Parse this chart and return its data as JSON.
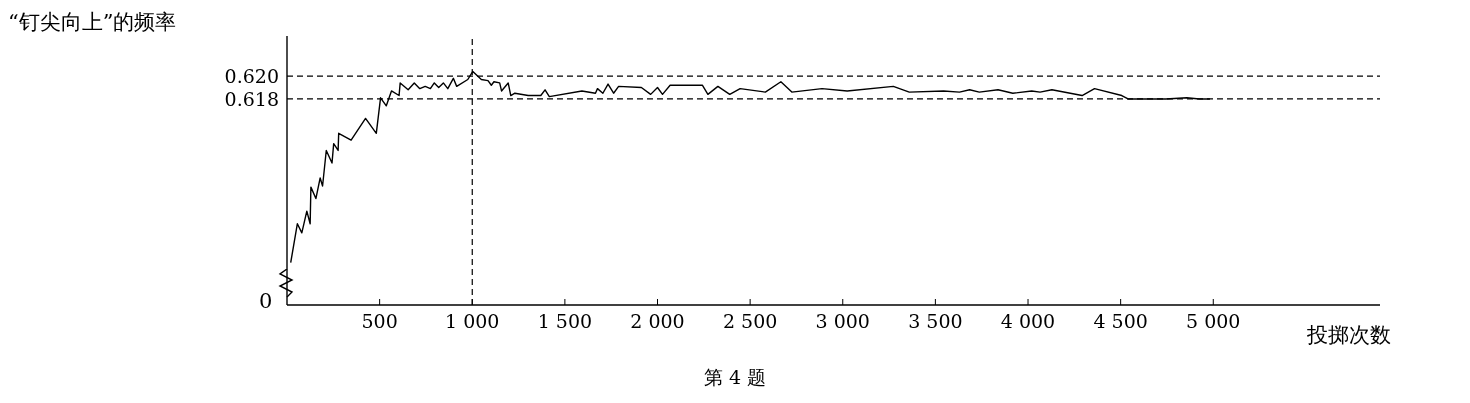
{
  "chart_data": {
    "type": "line",
    "ylabel": "“钉尖向上”的频率",
    "xlabel": "投掷次数",
    "annotations": [
      "0",
      "第 4 题"
    ],
    "xlim": [
      0,
      5900
    ],
    "xticks": [
      500,
      {
        "value": 1000,
        "label": "1 000"
      },
      {
        "value": 1500,
        "label": "1 500"
      },
      {
        "value": 2000,
        "label": "2 000"
      },
      {
        "value": 2500,
        "label": "2 500"
      },
      {
        "value": 3000,
        "label": "3 000"
      },
      {
        "value": 3500,
        "label": "3 500"
      },
      {
        "value": 4000,
        "label": "4 000"
      },
      {
        "value": 4500,
        "label": "4 500"
      },
      {
        "value": 5000,
        "label": "5 000"
      }
    ],
    "ylim": [
      0.6,
      0.6235
    ],
    "yticks": [
      0.618,
      {
        "value": 0.62,
        "label": "0.620"
      }
    ],
    "marker": "none",
    "line_style": "solid",
    "ref_lines": [
      {
        "axis": "y",
        "value": 0.62,
        "line_style": "dashed",
        "color": "#000000"
      },
      {
        "axis": "y",
        "value": 0.618,
        "line_style": "dashed",
        "color": "#000000"
      },
      {
        "axis": "x",
        "value": 1000,
        "line_style": "dashed",
        "color": "#000000"
      }
    ],
    "x": [
      20,
      56,
      80,
      107,
      125,
      129,
      156,
      179,
      192,
      212,
      243,
      252,
      276,
      279,
      346,
      424,
      482,
      505,
      536,
      564,
      605,
      611,
      654,
      687,
      717,
      746,
      774,
      795,
      819,
      844,
      868,
      898,
      916,
      976,
      1003,
      1049,
      1085,
      1103,
      1117,
      1148,
      1158,
      1194,
      1208,
      1230,
      1302,
      1370,
      1393,
      1416,
      1592,
      1665,
      1676,
      1705,
      1733,
      1763,
      1790,
      1913,
      1963,
      2000,
      2027,
      2068,
      2242,
      2272,
      2326,
      2390,
      2446,
      2582,
      2666,
      2725,
      2888,
      3024,
      3273,
      3359,
      3544,
      3630,
      3685,
      3737,
      3838,
      3918,
      4020,
      4065,
      4129,
      4292,
      4359,
      4506,
      4540,
      4744,
      4857,
      4925,
      4982
    ],
    "series": [
      {
        "color": "#000000",
        "values": [
          0.6037,
          0.6071,
          0.6063,
          0.6082,
          0.6071,
          0.6103,
          0.6093,
          0.6111,
          0.6104,
          0.6135,
          0.6124,
          0.6141,
          0.6135,
          0.615,
          0.6144,
          0.6163,
          0.615,
          0.6181,
          0.6174,
          0.6187,
          0.6183,
          0.6194,
          0.6188,
          0.6194,
          0.6189,
          0.6191,
          0.6189,
          0.6194,
          0.619,
          0.6194,
          0.6189,
          0.6198,
          0.6191,
          0.6197,
          0.6204,
          0.6197,
          0.6196,
          0.6192,
          0.6195,
          0.6194,
          0.6187,
          0.6194,
          0.6183,
          0.6185,
          0.6183,
          0.6183,
          0.6188,
          0.6182,
          0.6187,
          0.6185,
          0.6189,
          0.6185,
          0.6193,
          0.6185,
          0.6191,
          0.619,
          0.6184,
          0.619,
          0.6184,
          0.6192,
          0.6192,
          0.6184,
          0.6191,
          0.6184,
          0.6189,
          0.6186,
          0.6195,
          0.6186,
          0.6189,
          0.6187,
          0.6191,
          0.6186,
          0.6187,
          0.6186,
          0.6188,
          0.6186,
          0.6188,
          0.6185,
          0.6187,
          0.6186,
          0.6188,
          0.6183,
          0.6189,
          0.6183,
          0.618,
          0.618,
          0.6181,
          0.618,
          0.618
        ]
      }
    ]
  }
}
